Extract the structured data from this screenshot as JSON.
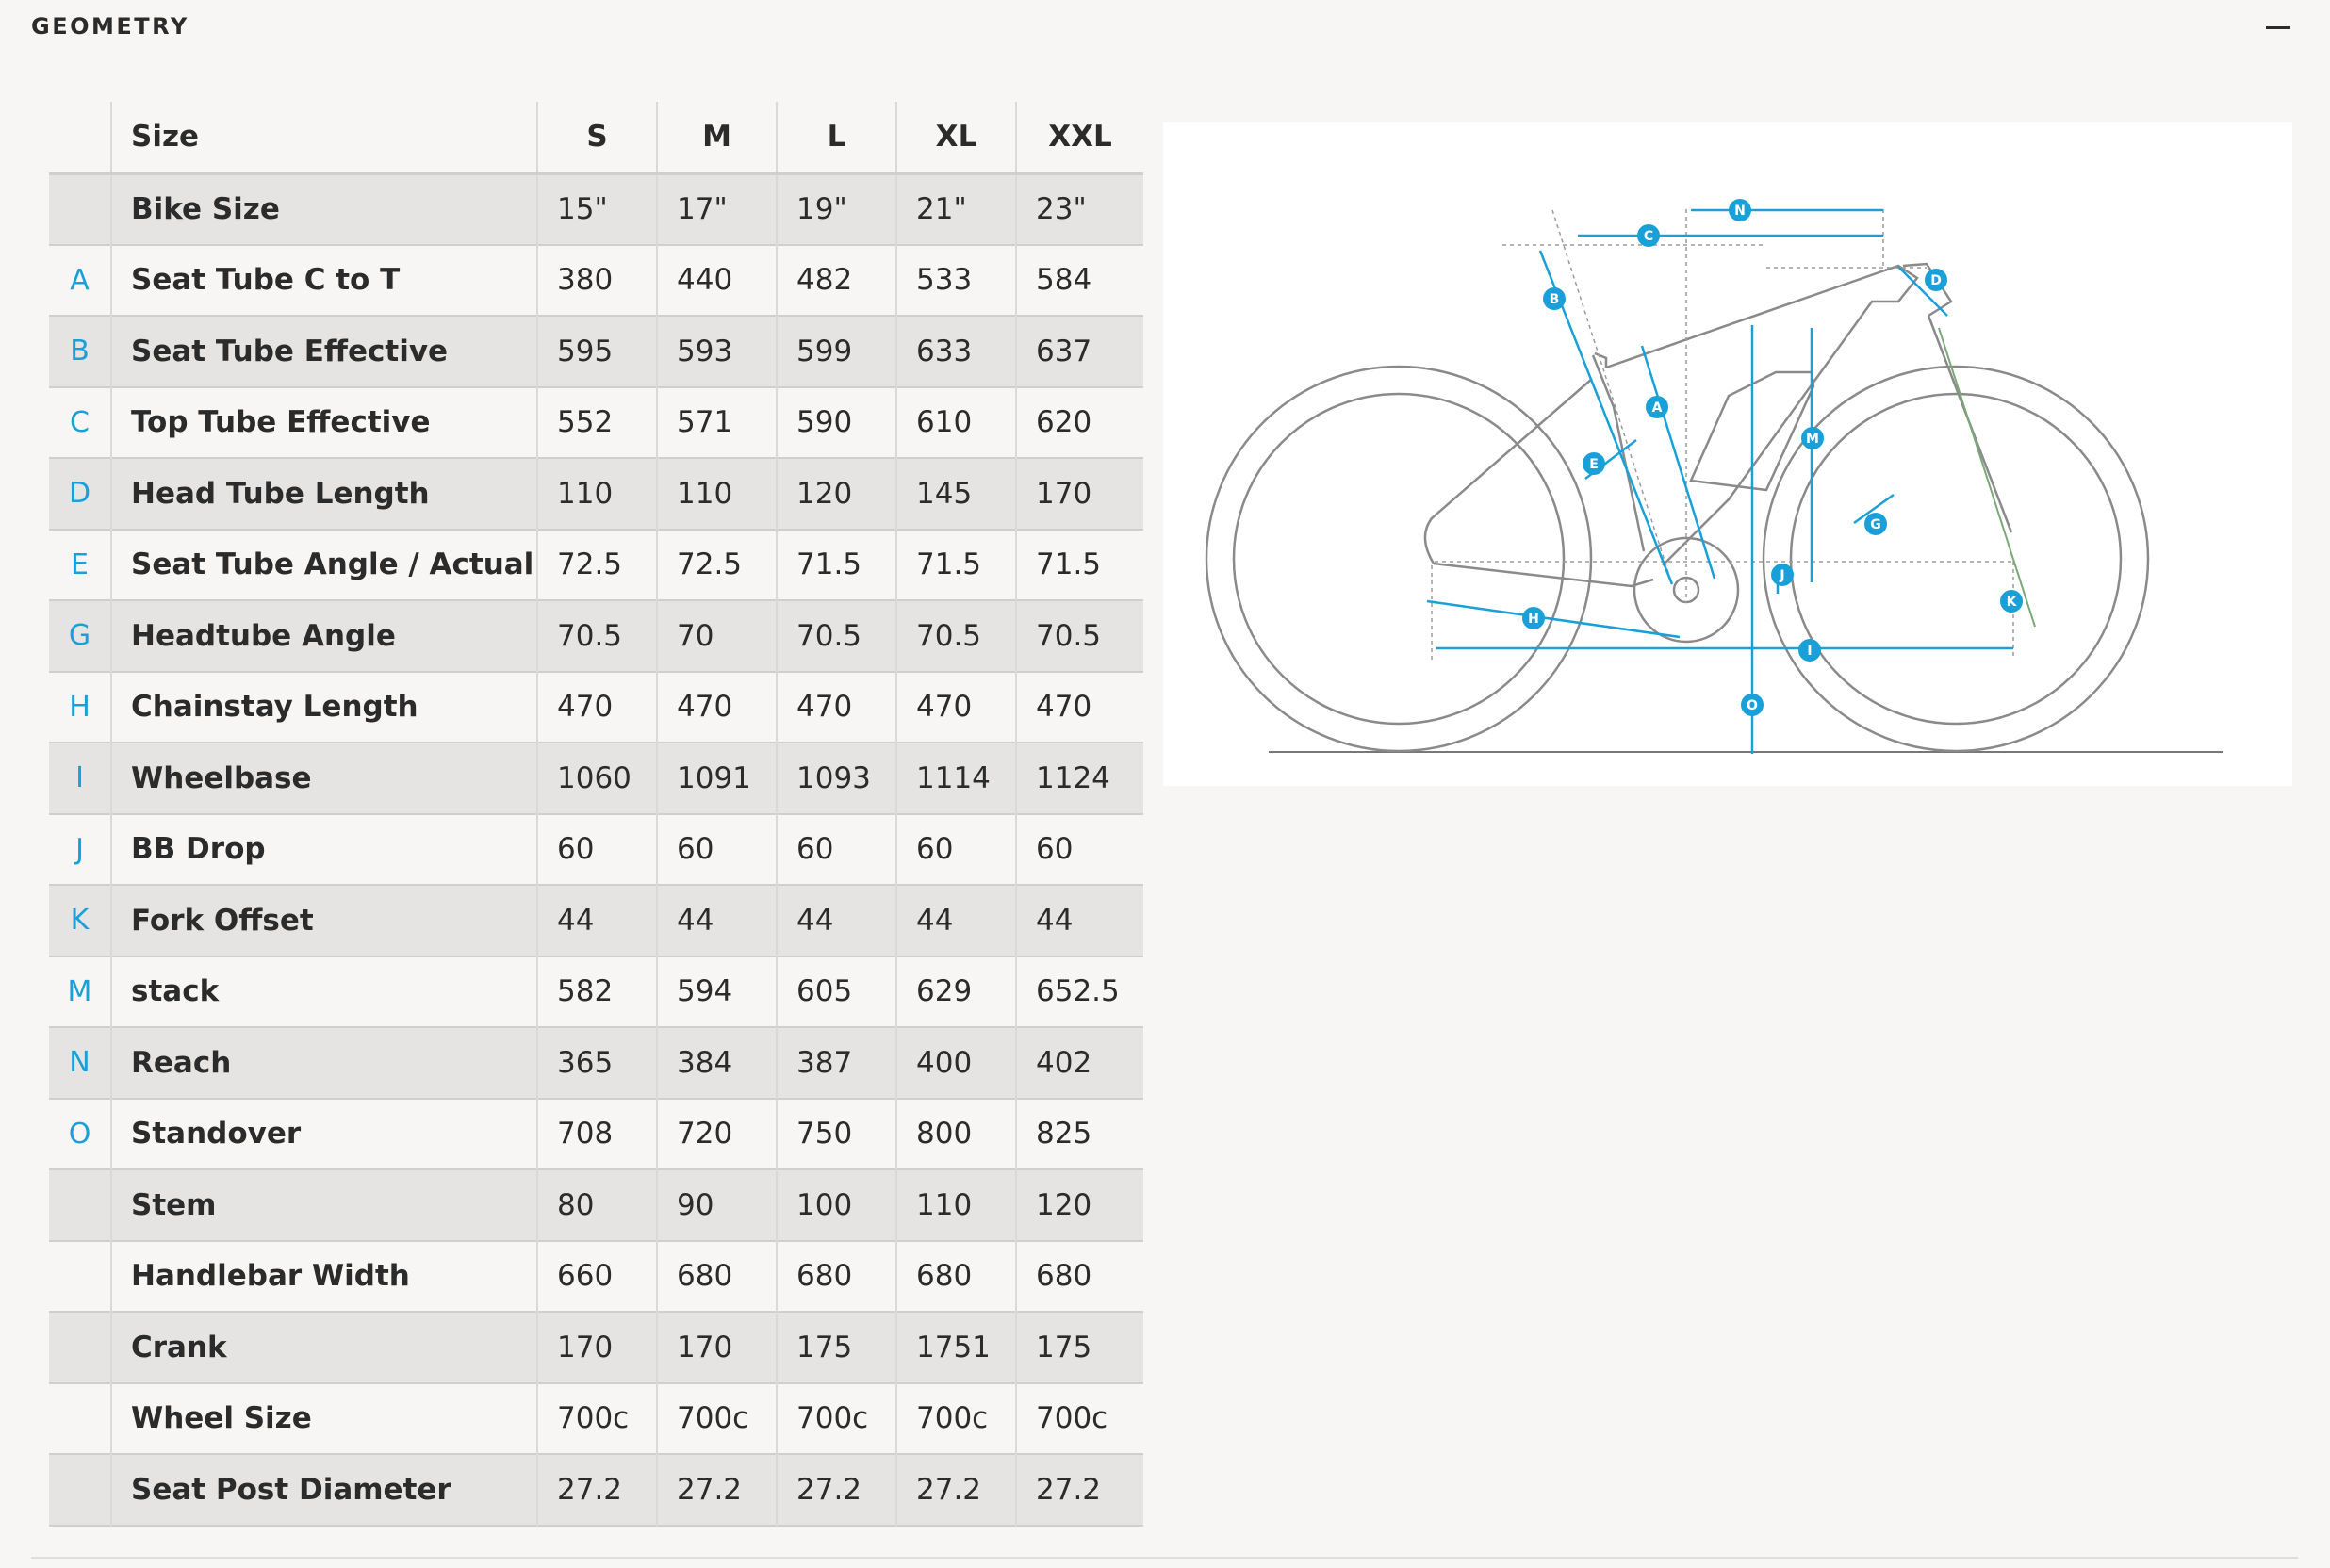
{
  "header": {
    "title": "GEOMETRY",
    "collapse_icon": "minus-icon"
  },
  "table": {
    "columns": [
      "Size",
      "S",
      "M",
      "L",
      "XL",
      "XXL"
    ],
    "rows": [
      {
        "letter": "",
        "label": "Bike Size",
        "values": [
          "15\"",
          "17\"",
          "19\"",
          "21\"",
          "23\""
        ]
      },
      {
        "letter": "A",
        "label": "Seat Tube C to T",
        "values": [
          "380",
          "440",
          "482",
          "533",
          "584"
        ]
      },
      {
        "letter": "B",
        "label": "Seat Tube Effective",
        "values": [
          "595",
          "593",
          "599",
          "633",
          "637"
        ]
      },
      {
        "letter": "C",
        "label": "Top Tube Effective",
        "values": [
          "552",
          "571",
          "590",
          "610",
          "620"
        ]
      },
      {
        "letter": "D",
        "label": "Head Tube Length",
        "values": [
          "110",
          "110",
          "120",
          "145",
          "170"
        ]
      },
      {
        "letter": "E",
        "label": "Seat Tube Angle / Actual",
        "values": [
          "72.5",
          "72.5",
          "71.5",
          "71.5",
          "71.5"
        ]
      },
      {
        "letter": "G",
        "label": "Headtube Angle",
        "values": [
          "70.5",
          "70",
          "70.5",
          "70.5",
          "70.5"
        ]
      },
      {
        "letter": "H",
        "label": "Chainstay Length",
        "values": [
          "470",
          "470",
          "470",
          "470",
          "470"
        ]
      },
      {
        "letter": "I",
        "label": "Wheelbase",
        "values": [
          "1060",
          "1091",
          "1093",
          "1114",
          "1124"
        ]
      },
      {
        "letter": "J",
        "label": "BB Drop",
        "values": [
          "60",
          "60",
          "60",
          "60",
          "60"
        ]
      },
      {
        "letter": "K",
        "label": "Fork Offset",
        "values": [
          "44",
          "44",
          "44",
          "44",
          "44"
        ]
      },
      {
        "letter": "M",
        "label": "stack",
        "values": [
          "582",
          "594",
          "605",
          "629",
          "652.5"
        ]
      },
      {
        "letter": "N",
        "label": "Reach",
        "values": [
          "365",
          "384",
          "387",
          "400",
          "402"
        ]
      },
      {
        "letter": "O",
        "label": "Standover",
        "values": [
          "708",
          "720",
          "750",
          "800",
          "825"
        ]
      },
      {
        "letter": "",
        "label": "Stem",
        "values": [
          "80",
          "90",
          "100",
          "110",
          "120"
        ]
      },
      {
        "letter": "",
        "label": "Handlebar Width",
        "values": [
          "660",
          "680",
          "680",
          "680",
          "680"
        ]
      },
      {
        "letter": "",
        "label": "Crank",
        "values": [
          "170",
          "170",
          "175",
          "1751",
          "175"
        ]
      },
      {
        "letter": "",
        "label": "Wheel Size",
        "values": [
          "700c",
          "700c",
          "700c",
          "700c",
          "700c"
        ]
      },
      {
        "letter": "",
        "label": "Seat Post Diameter",
        "values": [
          "27.2",
          "27.2",
          "27.2",
          "27.2",
          "27.2"
        ]
      }
    ]
  },
  "diagram": {
    "markers": [
      "A",
      "B",
      "C",
      "D",
      "E",
      "G",
      "H",
      "I",
      "J",
      "K",
      "M",
      "N",
      "O"
    ],
    "accent_color": "#1aa0d8",
    "frame_color": "#8a8a8a"
  }
}
